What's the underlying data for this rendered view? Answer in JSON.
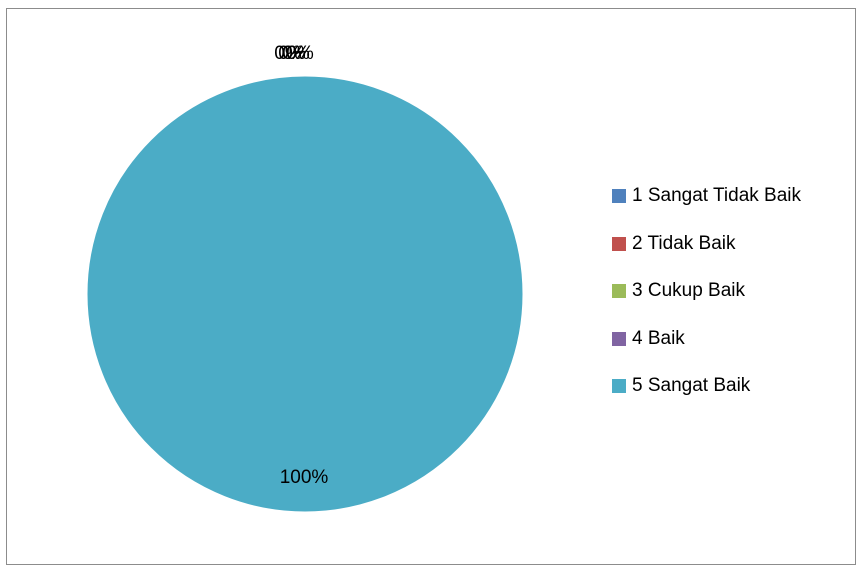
{
  "chart_data": {
    "type": "pie",
    "categories": [
      "1 Sangat Tidak Baik",
      "2 Tidak Baik",
      "3 Cukup Baik",
      "4 Baik",
      "5 Sangat Baik"
    ],
    "values": [
      0,
      0,
      0,
      0,
      100
    ],
    "data_labels": [
      "0%",
      "0%",
      "0%",
      "0%",
      "100%"
    ],
    "colors": [
      "#4f81bd",
      "#c0504d",
      "#9bbb59",
      "#8064a2",
      "#4bacc6"
    ],
    "title": "",
    "legend_position": "right"
  }
}
